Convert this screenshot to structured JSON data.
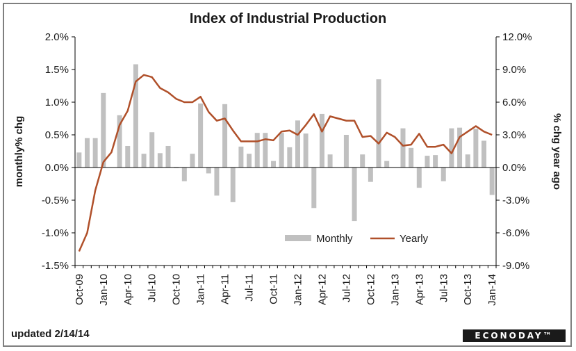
{
  "title": "Index of Industrial Production",
  "footer": {
    "updated": "updated 2/14/14",
    "brand": "ECONODAY™"
  },
  "colors": {
    "monthly": "#c0c0c0",
    "yearly": "#b0502a"
  },
  "chart_data": {
    "type": "bar",
    "title": "Index of Industrial Production",
    "ylabel_left": "monthly% chg",
    "ylabel_right": "% chg year ago",
    "ylim_left": [
      -1.5,
      2.0
    ],
    "ylim_right": [
      -9.0,
      12.0
    ],
    "yticks_left": [
      "2.0%",
      "1.5%",
      "1.0%",
      "0.5%",
      "0.0%",
      "-0.5%",
      "-1.0%",
      "-1.5%"
    ],
    "yticks_right": [
      "12.0%",
      "9.0%",
      "6.0%",
      "3.0%",
      "0.0%",
      "-3.0%",
      "-6.0%",
      "-9.0%"
    ],
    "x_tick_labels": [
      "Oct-09",
      "Jan-10",
      "Apr-10",
      "Jul-10",
      "Oct-10",
      "Jan-11",
      "Apr-11",
      "Jul-11",
      "Oct-11",
      "Jan-12",
      "Apr-12",
      "Jul-12",
      "Oct-12",
      "Jan-13",
      "Apr-13",
      "Jul-13",
      "Oct-13",
      "Jan-14"
    ],
    "legend": {
      "position": "bottom-center",
      "entries": [
        "Monthly",
        "Yearly"
      ]
    },
    "grid": false,
    "months": [
      "Oct-09",
      "Nov-09",
      "Dec-09",
      "Jan-10",
      "Feb-10",
      "Mar-10",
      "Apr-10",
      "May-10",
      "Jun-10",
      "Jul-10",
      "Aug-10",
      "Sep-10",
      "Oct-10",
      "Nov-10",
      "Dec-10",
      "Jan-11",
      "Feb-11",
      "Mar-11",
      "Apr-11",
      "May-11",
      "Jun-11",
      "Jul-11",
      "Aug-11",
      "Sep-11",
      "Oct-11",
      "Nov-11",
      "Dec-11",
      "Jan-12",
      "Feb-12",
      "Mar-12",
      "Apr-12",
      "May-12",
      "Jun-12",
      "Jul-12",
      "Aug-12",
      "Sep-12",
      "Oct-12",
      "Nov-12",
      "Dec-12",
      "Jan-13",
      "Feb-13",
      "Mar-13",
      "Apr-13",
      "May-13",
      "Jun-13",
      "Jul-13",
      "Aug-13",
      "Sep-13",
      "Oct-13",
      "Nov-13",
      "Dec-13",
      "Jan-14"
    ],
    "series": [
      {
        "name": "Monthly",
        "type": "bar",
        "axis": "left",
        "values": [
          0.23,
          0.45,
          0.45,
          1.14,
          0.0,
          0.8,
          0.33,
          1.58,
          0.21,
          0.54,
          0.22,
          0.33,
          -0.01,
          -0.21,
          0.21,
          0.98,
          -0.09,
          -0.43,
          0.97,
          -0.53,
          0.32,
          0.21,
          0.53,
          0.53,
          0.1,
          0.53,
          0.31,
          0.72,
          0.52,
          -0.62,
          0.82,
          0.2,
          0.0,
          0.5,
          -0.82,
          0.2,
          -0.22,
          1.35,
          0.1,
          0.0,
          0.6,
          0.3,
          -0.31,
          0.18,
          0.19,
          -0.21,
          0.6,
          0.61,
          0.2,
          0.59,
          0.41,
          -0.42
        ]
      },
      {
        "name": "Yearly",
        "type": "line",
        "axis": "right",
        "values": [
          -7.7,
          -6.0,
          -2.1,
          0.5,
          1.4,
          3.9,
          5.2,
          7.9,
          8.5,
          8.3,
          7.3,
          6.9,
          6.3,
          6.0,
          6.0,
          6.5,
          5.1,
          4.3,
          4.5,
          3.4,
          2.4,
          2.4,
          2.4,
          2.6,
          2.5,
          3.3,
          3.4,
          3.0,
          3.9,
          4.9,
          3.3,
          4.7,
          4.5,
          4.3,
          4.3,
          2.8,
          2.9,
          2.2,
          3.2,
          2.8,
          2.0,
          2.1,
          3.1,
          1.9,
          1.9,
          2.1,
          1.3,
          2.8,
          3.3,
          3.8,
          3.3,
          3.0
        ]
      }
    ]
  }
}
